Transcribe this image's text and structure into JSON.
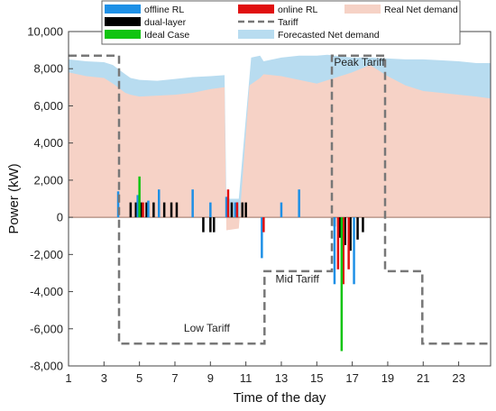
{
  "chart_data": {
    "type": "area",
    "xlabel": "Time of the day",
    "ylabel": "Power (kW)",
    "xlim": [
      1,
      24.8
    ],
    "ylim": [
      -8000,
      10000
    ],
    "xticks": [
      1,
      3,
      5,
      7,
      9,
      11,
      13,
      15,
      17,
      19,
      21,
      23
    ],
    "yticks": [
      -8000,
      -6000,
      -4000,
      -2000,
      0,
      2000,
      4000,
      6000,
      8000,
      10000
    ],
    "ytick_labels": [
      "-8,000",
      "-6,000",
      "-4,000",
      "-2,000",
      "0",
      "2,000",
      "4,000",
      "6,000",
      "8,000",
      "10,000"
    ],
    "grid": false,
    "legend_position": "top",
    "colors": {
      "offline_rl": "#1e90e6",
      "online_rl": "#e01010",
      "dual_layer": "#000000",
      "ideal_case": "#11c411",
      "tariff": "#777777",
      "real_net_demand": "#f6d2c6",
      "forecasted_net_demand": "#b8dcf0"
    },
    "legend": [
      {
        "key": "offline_rl",
        "label": "offline RL",
        "kind": "bar"
      },
      {
        "key": "online_rl",
        "label": "online RL",
        "kind": "bar"
      },
      {
        "key": "real_net_demand",
        "label": "Real Net demand",
        "kind": "area"
      },
      {
        "key": "dual_layer",
        "label": "dual-layer",
        "kind": "bar"
      },
      {
        "key": "tariff",
        "label": "Tariff",
        "kind": "dashed"
      },
      {
        "key": "ideal_case",
        "label": "Ideal Case",
        "kind": "bar"
      },
      {
        "key": "forecasted_net_demand",
        "label": "Forecasted Net demand",
        "kind": "area"
      }
    ],
    "series": [
      {
        "name": "Forecasted Net demand",
        "kind": "area",
        "x": [
          1,
          2,
          3,
          3.5,
          4.2,
          4.5,
          5,
          6,
          7,
          8,
          9,
          9.8,
          9.9,
          10.6,
          11.3,
          11.8,
          12,
          13,
          14,
          15,
          15.6,
          16,
          17,
          18,
          19,
          20,
          21,
          22,
          23,
          24,
          24.8
        ],
        "y": [
          8500,
          8400,
          8350,
          8200,
          7700,
          7500,
          7400,
          7350,
          7450,
          7550,
          7600,
          7650,
          1000,
          1000,
          8600,
          8700,
          8400,
          8600,
          8700,
          8700,
          8750,
          8700,
          8600,
          8600,
          8550,
          8500,
          8500,
          8450,
          8400,
          8300,
          8300
        ]
      },
      {
        "name": "Real Net demand",
        "kind": "area",
        "x": [
          1,
          2,
          3,
          3.5,
          4.2,
          4.5,
          5,
          6,
          7,
          8,
          9,
          9.8,
          9.9,
          10.6,
          11.2,
          11.8,
          12,
          13,
          14,
          15,
          16,
          17,
          18,
          19,
          20,
          21,
          22,
          23,
          24,
          24.8
        ],
        "y": [
          7800,
          7600,
          7500,
          7200,
          6700,
          6600,
          6500,
          6550,
          6600,
          6700,
          6900,
          7000,
          -700,
          -600,
          7100,
          7500,
          7700,
          7600,
          7400,
          7200,
          7500,
          7800,
          8200,
          7600,
          7100,
          6800,
          6700,
          6600,
          6500,
          6400
        ]
      },
      {
        "name": "Tariff",
        "kind": "step",
        "x": [
          1,
          3.85,
          3.85,
          12.05,
          12.05,
          15.85,
          15.85,
          18.85,
          18.85,
          20.95,
          20.95,
          24.8
        ],
        "y": [
          8700,
          8700,
          -6800,
          -6800,
          -2900,
          -2900,
          8700,
          8700,
          -2900,
          -2900,
          -6800,
          -6800
        ]
      }
    ],
    "bars": {
      "offline_rl": [
        [
          3.8,
          1400
        ],
        [
          4.9,
          1200
        ],
        [
          5.5,
          900
        ],
        [
          6.1,
          1500
        ],
        [
          8.0,
          1500
        ],
        [
          9.0,
          800
        ],
        [
          9.9,
          1100
        ],
        [
          10.4,
          800
        ],
        [
          11.9,
          -2200
        ],
        [
          13.0,
          800
        ],
        [
          14.0,
          1500
        ],
        [
          16.0,
          -3600
        ],
        [
          17.1,
          -3600
        ]
      ],
      "online_rl": [
        [
          5.2,
          800
        ],
        [
          10.0,
          1500
        ],
        [
          10.5,
          800
        ],
        [
          12.0,
          -800
        ],
        [
          16.2,
          -2800
        ],
        [
          16.5,
          -3600
        ],
        [
          16.8,
          -2800
        ]
      ],
      "dual_layer": [
        [
          4.5,
          800
        ],
        [
          4.8,
          800
        ],
        [
          5.1,
          800
        ],
        [
          5.4,
          800
        ],
        [
          5.8,
          800
        ],
        [
          6.1,
          800
        ],
        [
          6.4,
          800
        ],
        [
          6.8,
          800
        ],
        [
          7.1,
          800
        ],
        [
          8.6,
          -800
        ],
        [
          9.0,
          -800
        ],
        [
          9.2,
          -800
        ],
        [
          10.2,
          800
        ],
        [
          10.5,
          800
        ],
        [
          10.8,
          800
        ],
        [
          11.0,
          800
        ],
        [
          16.0,
          -500
        ],
        [
          16.3,
          -1100
        ],
        [
          16.6,
          -1500
        ],
        [
          16.9,
          -1800
        ],
        [
          17.3,
          -1200
        ],
        [
          17.6,
          -800
        ]
      ],
      "ideal_case": [
        [
          5.0,
          2200
        ],
        [
          16.4,
          -7200
        ]
      ]
    },
    "annotations": [
      {
        "text": "Peak Tariff",
        "x": 17.4,
        "y": 8150
      },
      {
        "text": "Mid Tariff",
        "x": 13.9,
        "y": -3500
      },
      {
        "text": "Low Tariff",
        "x": 8.8,
        "y": -6150
      }
    ]
  }
}
